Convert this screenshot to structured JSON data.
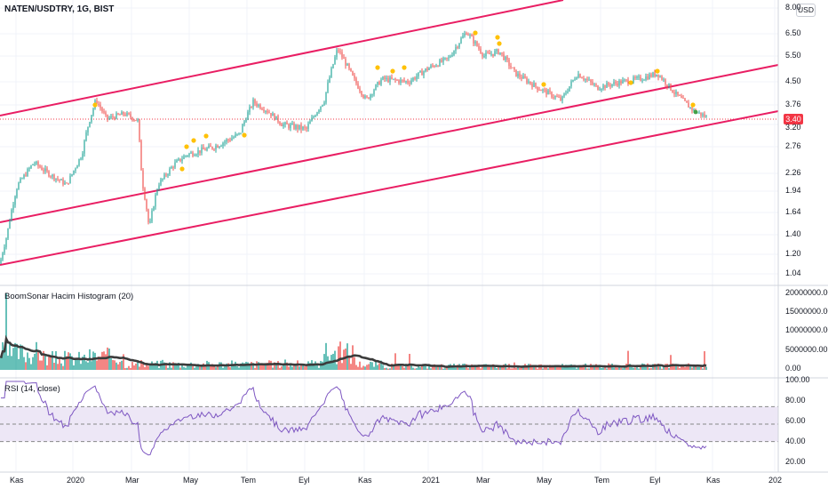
{
  "header": {
    "symbol_title": "NATEN/USDTRY, 1G, BIST",
    "currency_label": "USD"
  },
  "price_axis": {
    "ticks": [
      "8.00",
      "6.50",
      "5.50",
      "4.50",
      "3.76",
      "3.20",
      "2.76",
      "2.26",
      "1.94",
      "1.64",
      "1.40",
      "1.20",
      "1.04"
    ],
    "current_price": "3.40"
  },
  "volume_pane": {
    "title": "BoomSonar Hacim Histogram (20)",
    "ticks": [
      "20000000.00",
      "15000000.00",
      "10000000.00",
      "5000000.00",
      "0.00"
    ]
  },
  "rsi_pane": {
    "title": "RSI (14, close)",
    "ticks": [
      "100.00",
      "80.00",
      "60.00",
      "40.00",
      "20.00"
    ]
  },
  "time_axis": {
    "ticks": [
      "Kas",
      "2020",
      "Mar",
      "May",
      "Tem",
      "Eyl",
      "Kas",
      "2021",
      "Mar",
      "May",
      "Tem",
      "Eyl",
      "Kas",
      "202"
    ]
  },
  "colors": {
    "up": "#26a69a",
    "down": "#ef5350",
    "channel": "#e91e63",
    "rsi_line": "#7e57c2",
    "rsi_band": "#ede7f6",
    "volume_ma": "#3b3b3b",
    "signal_dot": "#ffc107"
  },
  "chart_data": {
    "type": "candlestick",
    "title": "NATEN/USDTRY, 1G, BIST",
    "price_keypoints": [
      [
        "Kas 2019",
        1.12
      ],
      [
        "Dec 2019",
        2.45
      ],
      [
        "Jan 2020",
        2.1
      ],
      [
        "Jan 2020",
        3.9
      ],
      [
        "Feb 2020",
        3.3
      ],
      [
        "Mar 2020",
        1.45
      ],
      [
        "Apr 2020",
        2.35
      ],
      [
        "May 2020",
        2.75
      ],
      [
        "Jun 2020",
        2.95
      ],
      [
        "Jul 2020",
        3.85
      ],
      [
        "Aug 2020",
        3.2
      ],
      [
        "Sep 2020",
        3.1
      ],
      [
        "Oct 2020",
        5.8
      ],
      [
        "Nov 2020",
        3.9
      ],
      [
        "Dec 2020",
        4.6
      ],
      [
        "Jan 2021",
        5.2
      ],
      [
        "Feb 2021",
        6.6
      ],
      [
        "Mar 2021",
        5.5
      ],
      [
        "Apr 2021",
        4.7
      ],
      [
        "May 2021",
        3.9
      ],
      [
        "Jun 2021",
        4.9
      ],
      [
        "Jul 2021",
        4.3
      ],
      [
        "Aug 2021",
        4.8
      ],
      [
        "Sep 2021",
        4.6
      ],
      [
        "Oct 2021",
        3.4
      ]
    ],
    "volume_scale": [
      0,
      20000000
    ],
    "rsi_levels": [
      70,
      50,
      30
    ],
    "rsi_range": [
      0,
      100
    ]
  }
}
